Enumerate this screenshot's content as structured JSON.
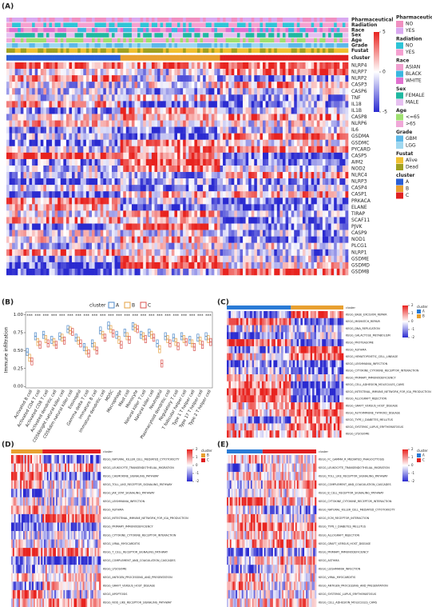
{
  "panel_labels": [
    "(A)",
    "(B)",
    "(C)",
    "(D)",
    "(E)"
  ],
  "heatmap_a": {
    "annotations": [
      "Pharmaceutical",
      "Radiation",
      "Race",
      "Sex",
      "Age",
      "Grade",
      "Fustat",
      "cluster"
    ],
    "genes": [
      "NLRP4",
      "NLRP7",
      "NLRP2",
      "CASP3",
      "CASP6",
      "TNF",
      "IL18",
      "IL1B",
      "CASP8",
      "NLRP6",
      "IL6",
      "GSDMA",
      "GSDMC",
      "PYCARD",
      "CASP5",
      "AIM2",
      "NOD2",
      "NLRC4",
      "NLRP3",
      "CASP4",
      "CASP1",
      "PRKACA",
      "ELANE",
      "TIRAP",
      "SCAF11",
      "PJVK",
      "CASP9",
      "NOD1",
      "PLCG1",
      "NLRP1",
      "GSDME",
      "GSDMD",
      "GSDMB"
    ],
    "scale_ticks": [
      5,
      0,
      -5
    ],
    "legend": [
      {
        "title": "Pharmaceutical",
        "items": [
          {
            "label": "NO",
            "color": "#f08fc0"
          },
          {
            "label": "YES",
            "color": "#d9a8f0"
          }
        ]
      },
      {
        "title": "Radiation",
        "items": [
          {
            "label": "NO",
            "color": "#2ec4d6"
          },
          {
            "label": "YES",
            "color": "#f5a0d0"
          }
        ]
      },
      {
        "title": "Race",
        "items": [
          {
            "label": "ASIAN",
            "color": "#f0a0d0"
          },
          {
            "label": "BLACK",
            "color": "#3ab7e0"
          },
          {
            "label": "WHITE",
            "color": "#e070d0"
          }
        ]
      },
      {
        "title": "Sex",
        "items": [
          {
            "label": "FEMALE",
            "color": "#1fb8a0"
          },
          {
            "label": "MALE",
            "color": "#e6c0f0"
          }
        ]
      },
      {
        "title": "Age",
        "items": [
          {
            "label": "<=65",
            "color": "#9fe070"
          },
          {
            "label": ">65",
            "color": "#f0a8d8"
          }
        ]
      },
      {
        "title": "Grade",
        "items": [
          {
            "label": "GBM",
            "color": "#5cb8e8"
          },
          {
            "label": "LGG",
            "color": "#a0d8f0"
          }
        ]
      },
      {
        "title": "Fustat",
        "items": [
          {
            "label": "Alive",
            "color": "#f0c030"
          },
          {
            "label": "Dead",
            "color": "#a0a020"
          }
        ]
      },
      {
        "title": "cluster",
        "items": [
          {
            "label": "A",
            "color": "#2a5fd6"
          },
          {
            "label": "B",
            "color": "#e8a030"
          },
          {
            "label": "C",
            "color": "#e02020"
          }
        ]
      }
    ]
  },
  "chart_data": {
    "type": "box",
    "y_label": "Immune infiltration",
    "legend_title": "cluster",
    "categories": [
      "Activated B cell",
      "Activated CD4 T cell",
      "Activated CD8 T cell",
      "Activated dendritic cell",
      "CD56bright natural killer cell",
      "CD56dim natural killer cell",
      "Eosinophil",
      "Gamma delta T cell",
      "Immature B cell",
      "Immature dendritic cell",
      "MDSC",
      "Macrophage",
      "Mast cell",
      "Monocyte",
      "Natural killer T cell",
      "Natural killer cell",
      "Neutrophil",
      "Plasmacytoid dendritic cell",
      "Regulatory T cell",
      "T follicular helper cell",
      "Type 1 T helper cell",
      "Type 17 T helper cell",
      "Type 2 T helper cell"
    ],
    "significance": [
      "***",
      "***",
      "***",
      "***",
      "***",
      "***",
      "***",
      "***",
      "***",
      "***",
      "***",
      "***",
      "***",
      "***",
      "***",
      "***",
      "***",
      "***",
      "***",
      "***",
      "***",
      "***",
      "***"
    ],
    "ylim": [
      -0.02,
      1.04
    ],
    "yticks": [
      {
        "value": 0,
        "label": "0.00"
      },
      {
        "value": 0.25,
        "label": "0.25"
      },
      {
        "value": 0.5,
        "label": "0.50"
      },
      {
        "value": 0.75,
        "label": "0.75"
      },
      {
        "value": 1,
        "label": "1.00"
      }
    ],
    "series": [
      {
        "name": "A",
        "color": "#4f8ac9",
        "median": [
          0.48,
          0.7,
          0.72,
          0.65,
          0.7,
          0.8,
          0.68,
          0.55,
          0.6,
          0.78,
          0.85,
          0.72,
          0.75,
          0.84,
          0.72,
          0.75,
          0.6,
          0.7,
          0.68,
          0.7,
          0.65,
          0.68,
          0.7
        ],
        "q1": [
          0.43,
          0.65,
          0.67,
          0.6,
          0.65,
          0.75,
          0.63,
          0.5,
          0.55,
          0.73,
          0.8,
          0.67,
          0.7,
          0.79,
          0.67,
          0.7,
          0.55,
          0.65,
          0.63,
          0.65,
          0.6,
          0.63,
          0.65
        ],
        "q3": [
          0.53,
          0.75,
          0.77,
          0.7,
          0.75,
          0.85,
          0.73,
          0.6,
          0.65,
          0.83,
          0.9,
          0.77,
          0.8,
          0.89,
          0.77,
          0.8,
          0.65,
          0.75,
          0.73,
          0.75,
          0.7,
          0.73,
          0.75
        ]
      },
      {
        "name": "B",
        "color": "#e6a040",
        "median": [
          0.4,
          0.62,
          0.66,
          0.62,
          0.68,
          0.78,
          0.64,
          0.5,
          0.56,
          0.72,
          0.8,
          0.65,
          0.7,
          0.82,
          0.7,
          0.72,
          0.52,
          0.66,
          0.62,
          0.66,
          0.6,
          0.64,
          0.66
        ],
        "q1": [
          0.35,
          0.57,
          0.61,
          0.57,
          0.63,
          0.73,
          0.59,
          0.45,
          0.51,
          0.67,
          0.75,
          0.6,
          0.65,
          0.77,
          0.65,
          0.67,
          0.47,
          0.61,
          0.57,
          0.61,
          0.55,
          0.59,
          0.61
        ],
        "q3": [
          0.45,
          0.67,
          0.71,
          0.67,
          0.73,
          0.83,
          0.69,
          0.55,
          0.61,
          0.77,
          0.85,
          0.7,
          0.75,
          0.87,
          0.75,
          0.77,
          0.57,
          0.71,
          0.67,
          0.71,
          0.65,
          0.69,
          0.71
        ]
      },
      {
        "name": "C",
        "color": "#d9534f",
        "median": [
          0.35,
          0.58,
          0.6,
          0.58,
          0.64,
          0.76,
          0.6,
          0.46,
          0.5,
          0.68,
          0.74,
          0.58,
          0.65,
          0.8,
          0.66,
          0.68,
          0.32,
          0.6,
          0.56,
          0.62,
          0.55,
          0.58,
          0.62
        ],
        "q1": [
          0.3,
          0.53,
          0.55,
          0.53,
          0.59,
          0.71,
          0.55,
          0.41,
          0.45,
          0.63,
          0.69,
          0.53,
          0.6,
          0.75,
          0.61,
          0.63,
          0.27,
          0.55,
          0.51,
          0.57,
          0.5,
          0.53,
          0.57
        ],
        "q3": [
          0.4,
          0.63,
          0.65,
          0.63,
          0.69,
          0.81,
          0.65,
          0.51,
          0.55,
          0.73,
          0.79,
          0.63,
          0.7,
          0.85,
          0.71,
          0.73,
          0.37,
          0.65,
          0.61,
          0.67,
          0.6,
          0.63,
          0.67
        ]
      }
    ]
  },
  "heatmap_c": {
    "legend_title": "cluster",
    "legend": [
      {
        "label": "A",
        "color": "#2a7bd6"
      },
      {
        "label": "B",
        "color": "#e8a030"
      }
    ],
    "scale_ticks": [
      2,
      1,
      0,
      -1,
      -2
    ],
    "rows": [
      "KEGG_BASE_EXCISION_REPAIR",
      "KEGG_MISMATCH_REPAIR",
      "KEGG_DNA_REPLICATION",
      "KEGG_GALACTOSE_METABOLISM",
      "KEGG_PROTEASOME",
      "KEGG_ASTHMA",
      "KEGG_HEMATOPOIETIC_CELL_LINEAGE",
      "KEGG_LEISHMANIA_INFECTION",
      "KEGG_CYTOKINE_CYTOKINE_RECEPTOR_INTERACTION",
      "KEGG_PRIMARY_IMMUNODEFICIENCY",
      "KEGG_CELL_ADHESION_MOLECULES_CAMS",
      "KEGG_INTESTINAL_IMMUNE_NETWORK_FOR_IGA_PRODUCTION",
      "KEGG_ALLOGRAFT_REJECTION",
      "KEGG_GRAFT_VERSUS_HOST_DISEASE",
      "KEGG_AUTOIMMUNE_THYROID_DISEASE",
      "KEGG_TYPE_I_DIABETES_MELLITUS",
      "KEGG_SYSTEMIC_LUPUS_ERYTHEMATOSUS",
      "KEGG_LYSOSOME"
    ]
  },
  "heatmap_d": {
    "legend_title": "cluster",
    "legend": [
      {
        "label": "B",
        "color": "#e8a030"
      },
      {
        "label": "C",
        "color": "#e02020"
      }
    ],
    "scale_ticks": [
      2,
      1,
      0,
      -1,
      -2
    ],
    "rows": [
      "KEGG_NATURAL_KILLER_CELL_MEDIATED_CYTOTOXICITY",
      "KEGG_LEUKOCYTE_TRANSENDOTHELIAL_MIGRATION",
      "KEGG_CHEMOKINE_SIGNALING_PATHWAY",
      "KEGG_TOLL_LIKE_RECEPTOR_SIGNALING_PATHWAY",
      "KEGG_JAK_STAT_SIGNALING_PATHWAY",
      "KEGG_LEISHMANIA_INFECTION",
      "KEGG_ASTHMA",
      "KEGG_INTESTINAL_IMMUNE_NETWORK_FOR_IGA_PRODUCTION",
      "KEGG_PRIMARY_IMMUNODEFICIENCY",
      "KEGG_CYTOKINE_CYTOKINE_RECEPTOR_INTERACTION",
      "KEGG_VIRAL_MYOCARDITIS",
      "KEGG_T_CELL_RECEPTOR_SIGNALING_PATHWAY",
      "KEGG_COMPLEMENT_AND_COAGULATION_CASCADES",
      "KEGG_LYSOSOME",
      "KEGG_ANTIGEN_PROCESSING_AND_PRESENTATION",
      "KEGG_GRAFT_VERSUS_HOST_DISEASE",
      "KEGG_APOPTOSIS",
      "KEGG_NOD_LIKE_RECEPTOR_SIGNALING_PATHWAY"
    ]
  },
  "heatmap_e": {
    "legend_title": "cluster",
    "legend": [
      {
        "label": "A",
        "color": "#2a7bd6"
      },
      {
        "label": "C",
        "color": "#e02020"
      }
    ],
    "scale_ticks": [
      2,
      1,
      0,
      -1,
      -2
    ],
    "rows": [
      "KEGG_FC_GAMMA_R_MEDIATED_PHAGOCYTOSIS",
      "KEGG_LEUKOCYTE_TRANSENDOTHELIAL_MIGRATION",
      "KEGG_TOLL_LIKE_RECEPTOR_SIGNALING_PATHWAY",
      "KEGG_COMPLEMENT_AND_COAGULATION_CASCADES",
      "KEGG_B_CELL_RECEPTOR_SIGNALING_PATHWAY",
      "KEGG_CYTOKINE_CYTOKINE_RECEPTOR_INTERACTION",
      "KEGG_NATURAL_KILLER_CELL_MEDIATED_CYTOTOXICITY",
      "KEGG_ECM_RECEPTOR_INTERACTION",
      "KEGG_TYPE_I_DIABETES_MELLITUS",
      "KEGG_ALLOGRAFT_REJECTION",
      "KEGG_GRAFT_VERSUS_HOST_DISEASE",
      "KEGG_PRIMARY_IMMUNODEFICIENCY",
      "KEGG_ASTHMA",
      "KEGG_LEISHMANIA_INFECTION",
      "KEGG_VIRAL_MYOCARDITIS",
      "KEGG_ANTIGEN_PROCESSING_AND_PRESENTATION",
      "KEGG_SYSTEMIC_LUPUS_ERYTHEMATOSUS",
      "KEGG_CELL_ADHESION_MOLECULES_CAMS"
    ]
  }
}
